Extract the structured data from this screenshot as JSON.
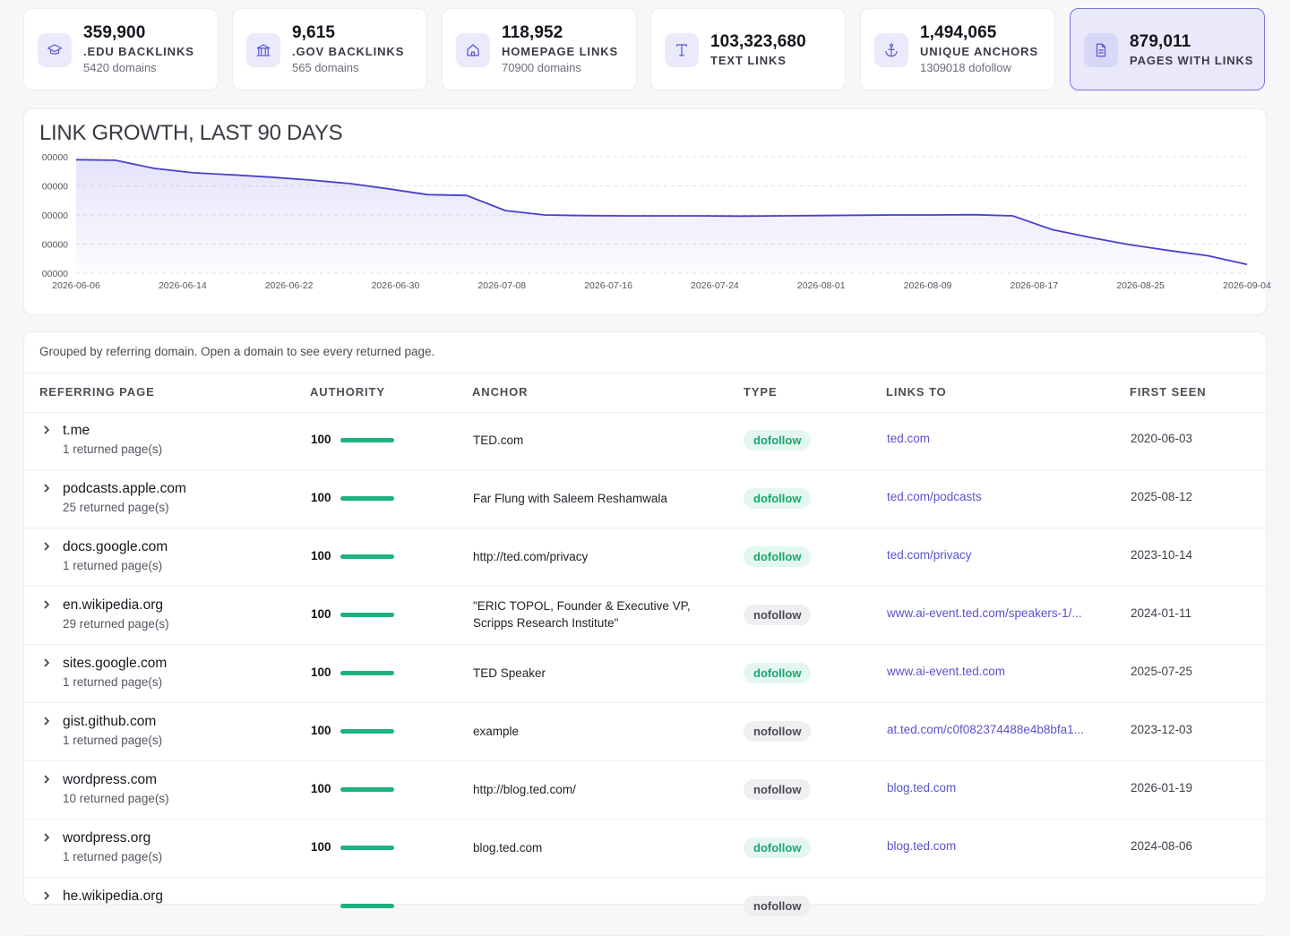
{
  "cards": [
    {
      "value": "359,900",
      "label": ".EDU BACKLINKS",
      "sub": "5420 domains",
      "icon": "graduation-cap-icon"
    },
    {
      "value": "9,615",
      "label": ".GOV BACKLINKS",
      "sub": "565 domains",
      "icon": "government-building-icon"
    },
    {
      "value": "118,952",
      "label": "HOMEPAGE LINKS",
      "sub": "70900 domains",
      "icon": "home-icon"
    },
    {
      "value": "103,323,680",
      "label": "TEXT LINKS",
      "sub": "",
      "icon": "text-type-icon"
    },
    {
      "value": "1,494,065",
      "label": "UNIQUE ANCHORS",
      "sub": "1309018 dofollow",
      "icon": "anchor-icon"
    },
    {
      "value": "879,011",
      "label": "PAGES WITH LINKS",
      "sub": "",
      "icon": "document-icon"
    }
  ],
  "chart": {
    "title": "LINK GROWTH, LAST 90 DAYS",
    "y_ticks": [
      "00000",
      "00000",
      "00000",
      "00000",
      "00000"
    ],
    "x_ticks": [
      "2026-06-06",
      "2026-06-14",
      "2026-06-22",
      "2026-06-30",
      "2026-07-08",
      "2026-07-16",
      "2026-07-24",
      "2026-08-01",
      "2026-08-09",
      "2026-08-17",
      "2026-08-25",
      "2026-09-04"
    ]
  },
  "chart_data": {
    "type": "area",
    "title": "LINK GROWTH, LAST 90 DAYS",
    "xlabel": "",
    "ylabel": "",
    "grid": true,
    "x": [
      "2026-06-06",
      "2026-06-09",
      "2026-06-12",
      "2026-06-15",
      "2026-06-18",
      "2026-06-21",
      "2026-06-24",
      "2026-06-27",
      "2026-06-30",
      "2026-07-03",
      "2026-07-06",
      "2026-07-09",
      "2026-07-12",
      "2026-07-15",
      "2026-07-18",
      "2026-07-21",
      "2026-07-24",
      "2026-07-27",
      "2026-07-30",
      "2026-08-02",
      "2026-08-05",
      "2026-08-08",
      "2026-08-11",
      "2026-08-14",
      "2026-08-17",
      "2026-08-20",
      "2026-08-23",
      "2026-08-26",
      "2026-08-29",
      "2026-09-01",
      "2026-09-04"
    ],
    "y": [
      3.9,
      3.88,
      3.6,
      3.45,
      3.38,
      3.3,
      3.2,
      3.08,
      2.9,
      2.7,
      2.67,
      2.15,
      2.0,
      1.98,
      1.97,
      1.97,
      1.97,
      1.96,
      1.97,
      1.98,
      1.99,
      2.0,
      2.0,
      2.01,
      1.97,
      1.5,
      1.22,
      0.98,
      0.78,
      0.6,
      0.3
    ],
    "y_normalized": true
  },
  "table": {
    "note": "Grouped by referring domain. Open a domain to see every returned page.",
    "headers": [
      "REFERRING PAGE",
      "AUTHORITY",
      "ANCHOR",
      "TYPE",
      "LINKS TO",
      "FIRST SEEN"
    ],
    "rows": [
      {
        "domain": "t.me",
        "pages": "1 returned page(s)",
        "authority": "100",
        "authority_pct": 100,
        "anchor": "TED.com",
        "type": "dofollow",
        "links_to": "ted.com",
        "first_seen": "2020-06-03"
      },
      {
        "domain": "podcasts.apple.com",
        "pages": "25 returned page(s)",
        "authority": "100",
        "authority_pct": 100,
        "anchor": "Far Flung with Saleem Reshamwala",
        "type": "dofollow",
        "links_to": "ted.com/podcasts",
        "first_seen": "2025-08-12"
      },
      {
        "domain": "docs.google.com",
        "pages": "1 returned page(s)",
        "authority": "100",
        "authority_pct": 100,
        "anchor": "http://ted.com/privacy",
        "type": "dofollow",
        "links_to": "ted.com/privacy",
        "first_seen": "2023-10-14"
      },
      {
        "domain": "en.wikipedia.org",
        "pages": "29 returned page(s)",
        "authority": "100",
        "authority_pct": 100,
        "anchor": "\"ERIC TOPOL, Founder & Executive VP, Scripps Research Institute\"",
        "type": "nofollow",
        "links_to": "www.ai-event.ted.com/speakers-1/...",
        "first_seen": "2024-01-11"
      },
      {
        "domain": "sites.google.com",
        "pages": "1 returned page(s)",
        "authority": "100",
        "authority_pct": 100,
        "anchor": "TED Speaker",
        "type": "dofollow",
        "links_to": "www.ai-event.ted.com",
        "first_seen": "2025-07-25"
      },
      {
        "domain": "gist.github.com",
        "pages": "1 returned page(s)",
        "authority": "100",
        "authority_pct": 100,
        "anchor": "example",
        "type": "nofollow",
        "links_to": "at.ted.com/c0f082374488e4b8bfa1...",
        "first_seen": "2023-12-03"
      },
      {
        "domain": "wordpress.com",
        "pages": "10 returned page(s)",
        "authority": "100",
        "authority_pct": 100,
        "anchor": "http://blog.ted.com/",
        "type": "nofollow",
        "links_to": "blog.ted.com",
        "first_seen": "2026-01-19"
      },
      {
        "domain": "wordpress.org",
        "pages": "1 returned page(s)",
        "authority": "100",
        "authority_pct": 100,
        "anchor": "blog.ted.com",
        "type": "dofollow",
        "links_to": "blog.ted.com",
        "first_seen": "2024-08-06"
      },
      {
        "domain": "he.wikipedia.org",
        "pages": "",
        "authority": "",
        "authority_pct": 100,
        "anchor": "",
        "type": "nofollow",
        "links_to": "",
        "first_seen": ""
      }
    ]
  },
  "colors": {
    "accent": "#5b52cf",
    "line": "#4a40c9",
    "dofollow": "#1aa673",
    "bar": "#1db27e"
  }
}
